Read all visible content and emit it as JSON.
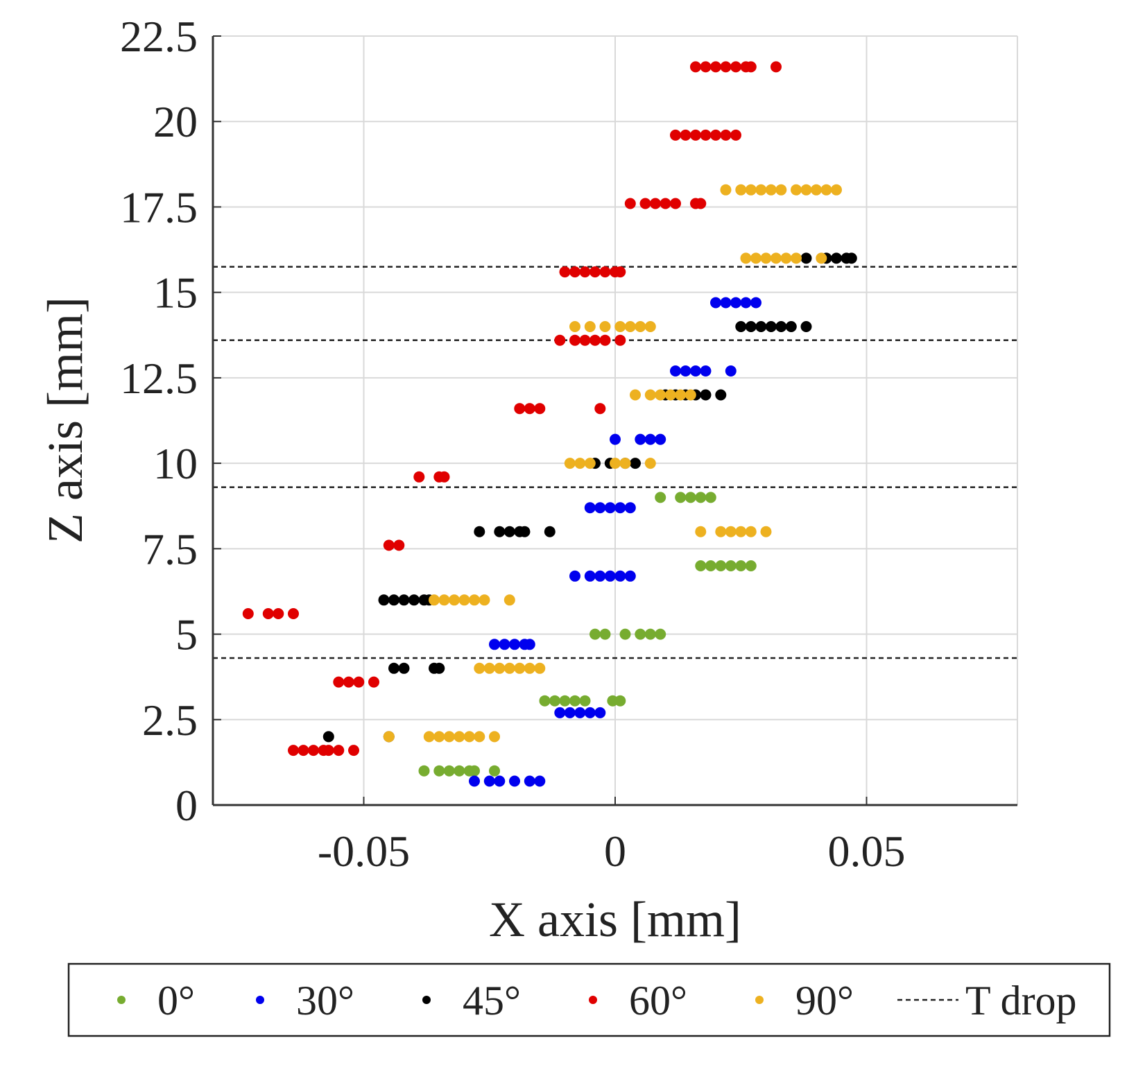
{
  "chart_data": {
    "type": "scatter",
    "title": "",
    "xlabel": "X axis [mm]",
    "ylabel": "Z axis [mm]",
    "xlim": [
      -0.08,
      0.08
    ],
    "ylim": [
      0,
      22.5
    ],
    "xticks": [
      -0.05,
      0,
      0.05
    ],
    "xtick_labels": [
      "-0.05",
      "0",
      "0.05"
    ],
    "yticks": [
      0,
      2.5,
      5,
      7.5,
      10,
      12.5,
      15,
      17.5,
      20,
      22.5
    ],
    "ytick_labels": [
      "0",
      "2.5",
      "5",
      "7.5",
      "10",
      "12.5",
      "15",
      "17.5",
      "20",
      "22.5"
    ],
    "grid": true,
    "legend_position": "bottom",
    "series": [
      {
        "name": "0°",
        "color": "#77ac30",
        "points": [
          [
            -0.038,
            1.0
          ],
          [
            -0.035,
            1.0
          ],
          [
            -0.033,
            1.0
          ],
          [
            -0.031,
            1.0
          ],
          [
            -0.029,
            1.0
          ],
          [
            -0.028,
            1.0
          ],
          [
            -0.024,
            1.0
          ],
          [
            -0.014,
            3.05
          ],
          [
            -0.012,
            3.05
          ],
          [
            -0.01,
            3.05
          ],
          [
            -0.008,
            3.05
          ],
          [
            -0.006,
            3.05
          ],
          [
            -0.0005,
            3.05
          ],
          [
            0.001,
            3.05
          ],
          [
            -0.004,
            5.0
          ],
          [
            -0.002,
            5.0
          ],
          [
            0.002,
            5.0
          ],
          [
            0.005,
            5.0
          ],
          [
            0.007,
            5.0
          ],
          [
            0.009,
            5.0
          ],
          [
            0.017,
            7.0
          ],
          [
            0.019,
            7.0
          ],
          [
            0.021,
            7.0
          ],
          [
            0.023,
            7.0
          ],
          [
            0.025,
            7.0
          ],
          [
            0.027,
            7.0
          ],
          [
            0.009,
            9.0
          ],
          [
            0.013,
            9.0
          ],
          [
            0.015,
            9.0
          ],
          [
            0.017,
            9.0
          ],
          [
            0.019,
            9.0
          ]
        ]
      },
      {
        "name": "30°",
        "color": "#0000ee",
        "points": [
          [
            -0.028,
            0.7
          ],
          [
            -0.025,
            0.7
          ],
          [
            -0.023,
            0.7
          ],
          [
            -0.02,
            0.7
          ],
          [
            -0.017,
            0.7
          ],
          [
            -0.015,
            0.7
          ],
          [
            -0.011,
            2.7
          ],
          [
            -0.009,
            2.7
          ],
          [
            -0.007,
            2.7
          ],
          [
            -0.005,
            2.7
          ],
          [
            -0.003,
            2.7
          ],
          [
            -0.024,
            4.7
          ],
          [
            -0.022,
            4.7
          ],
          [
            -0.02,
            4.7
          ],
          [
            -0.018,
            4.7
          ],
          [
            -0.017,
            4.7
          ],
          [
            -0.008,
            6.7
          ],
          [
            -0.005,
            6.7
          ],
          [
            -0.003,
            6.7
          ],
          [
            -0.001,
            6.7
          ],
          [
            0.001,
            6.7
          ],
          [
            0.003,
            6.7
          ],
          [
            -0.005,
            8.7
          ],
          [
            -0.003,
            8.7
          ],
          [
            -0.001,
            8.7
          ],
          [
            0.001,
            8.7
          ],
          [
            0.003,
            8.7
          ],
          [
            0.0,
            10.7
          ],
          [
            0.005,
            10.7
          ],
          [
            0.007,
            10.7
          ],
          [
            0.009,
            10.7
          ],
          [
            0.012,
            12.7
          ],
          [
            0.014,
            12.7
          ],
          [
            0.016,
            12.7
          ],
          [
            0.018,
            12.7
          ],
          [
            0.023,
            12.7
          ],
          [
            0.02,
            14.7
          ],
          [
            0.022,
            14.7
          ],
          [
            0.024,
            14.7
          ],
          [
            0.026,
            14.7
          ],
          [
            0.028,
            14.7
          ]
        ]
      },
      {
        "name": "45°",
        "color": "#000000",
        "points": [
          [
            -0.057,
            2.0
          ],
          [
            -0.045,
            2.0
          ],
          [
            -0.044,
            4.0
          ],
          [
            -0.042,
            4.0
          ],
          [
            -0.036,
            4.0
          ],
          [
            -0.035,
            4.0
          ],
          [
            -0.046,
            6.0
          ],
          [
            -0.044,
            6.0
          ],
          [
            -0.042,
            6.0
          ],
          [
            -0.04,
            6.0
          ],
          [
            -0.038,
            6.0
          ],
          [
            -0.037,
            6.0
          ],
          [
            -0.027,
            8.0
          ],
          [
            -0.023,
            8.0
          ],
          [
            -0.021,
            8.0
          ],
          [
            -0.019,
            8.0
          ],
          [
            -0.018,
            8.0
          ],
          [
            -0.013,
            8.0
          ],
          [
            -0.004,
            10.0
          ],
          [
            -0.001,
            10.0
          ],
          [
            0.002,
            10.0
          ],
          [
            0.004,
            10.0
          ],
          [
            0.01,
            12.0
          ],
          [
            0.012,
            12.0
          ],
          [
            0.014,
            12.0
          ],
          [
            0.016,
            12.0
          ],
          [
            0.018,
            12.0
          ],
          [
            0.021,
            12.0
          ],
          [
            0.025,
            14.0
          ],
          [
            0.027,
            14.0
          ],
          [
            0.029,
            14.0
          ],
          [
            0.031,
            14.0
          ],
          [
            0.033,
            14.0
          ],
          [
            0.035,
            14.0
          ],
          [
            0.038,
            14.0
          ],
          [
            0.038,
            16.0
          ],
          [
            0.042,
            16.0
          ],
          [
            0.044,
            16.0
          ],
          [
            0.046,
            16.0
          ],
          [
            0.047,
            16.0
          ]
        ]
      },
      {
        "name": "60°",
        "color": "#e00000",
        "points": [
          [
            -0.064,
            1.6
          ],
          [
            -0.062,
            1.6
          ],
          [
            -0.06,
            1.6
          ],
          [
            -0.058,
            1.6
          ],
          [
            -0.057,
            1.6
          ],
          [
            -0.055,
            1.6
          ],
          [
            -0.052,
            1.6
          ],
          [
            -0.055,
            3.6
          ],
          [
            -0.053,
            3.6
          ],
          [
            -0.051,
            3.6
          ],
          [
            -0.048,
            3.6
          ],
          [
            -0.073,
            5.6
          ],
          [
            -0.069,
            5.6
          ],
          [
            -0.067,
            5.6
          ],
          [
            -0.064,
            5.6
          ],
          [
            -0.045,
            7.6
          ],
          [
            -0.043,
            7.6
          ],
          [
            -0.039,
            9.6
          ],
          [
            -0.035,
            9.6
          ],
          [
            -0.034,
            9.6
          ],
          [
            -0.019,
            11.6
          ],
          [
            -0.017,
            11.6
          ],
          [
            -0.015,
            11.6
          ],
          [
            -0.003,
            11.6
          ],
          [
            -0.011,
            13.6
          ],
          [
            -0.008,
            13.6
          ],
          [
            -0.006,
            13.6
          ],
          [
            -0.004,
            13.6
          ],
          [
            -0.002,
            13.6
          ],
          [
            0.001,
            13.6
          ],
          [
            -0.01,
            15.6
          ],
          [
            -0.008,
            15.6
          ],
          [
            -0.006,
            15.6
          ],
          [
            -0.004,
            15.6
          ],
          [
            -0.002,
            15.6
          ],
          [
            0.0,
            15.6
          ],
          [
            0.001,
            15.6
          ],
          [
            0.003,
            17.6
          ],
          [
            0.006,
            17.6
          ],
          [
            0.008,
            17.6
          ],
          [
            0.01,
            17.6
          ],
          [
            0.012,
            17.6
          ],
          [
            0.016,
            17.6
          ],
          [
            0.017,
            17.6
          ],
          [
            0.012,
            19.6
          ],
          [
            0.014,
            19.6
          ],
          [
            0.016,
            19.6
          ],
          [
            0.018,
            19.6
          ],
          [
            0.02,
            19.6
          ],
          [
            0.022,
            19.6
          ],
          [
            0.024,
            19.6
          ],
          [
            0.016,
            21.6
          ],
          [
            0.018,
            21.6
          ],
          [
            0.02,
            21.6
          ],
          [
            0.022,
            21.6
          ],
          [
            0.024,
            21.6
          ],
          [
            0.026,
            21.6
          ],
          [
            0.027,
            21.6
          ],
          [
            0.032,
            21.6
          ]
        ]
      },
      {
        "name": "90°",
        "color": "#edb120",
        "points": [
          [
            -0.045,
            2.0
          ],
          [
            -0.037,
            2.0
          ],
          [
            -0.035,
            2.0
          ],
          [
            -0.033,
            2.0
          ],
          [
            -0.031,
            2.0
          ],
          [
            -0.029,
            2.0
          ],
          [
            -0.027,
            2.0
          ],
          [
            -0.024,
            2.0
          ],
          [
            -0.027,
            4.0
          ],
          [
            -0.025,
            4.0
          ],
          [
            -0.023,
            4.0
          ],
          [
            -0.021,
            4.0
          ],
          [
            -0.019,
            4.0
          ],
          [
            -0.017,
            4.0
          ],
          [
            -0.015,
            4.0
          ],
          [
            -0.036,
            6.0
          ],
          [
            -0.034,
            6.0
          ],
          [
            -0.032,
            6.0
          ],
          [
            -0.03,
            6.0
          ],
          [
            -0.028,
            6.0
          ],
          [
            -0.026,
            6.0
          ],
          [
            -0.021,
            6.0
          ],
          [
            0.017,
            8.0
          ],
          [
            0.021,
            8.0
          ],
          [
            0.023,
            8.0
          ],
          [
            0.025,
            8.0
          ],
          [
            0.027,
            8.0
          ],
          [
            0.03,
            8.0
          ],
          [
            -0.009,
            10.0
          ],
          [
            -0.007,
            10.0
          ],
          [
            -0.005,
            10.0
          ],
          [
            0.0,
            10.0
          ],
          [
            0.002,
            10.0
          ],
          [
            0.007,
            10.0
          ],
          [
            0.004,
            12.0
          ],
          [
            0.007,
            12.0
          ],
          [
            0.009,
            12.0
          ],
          [
            0.011,
            12.0
          ],
          [
            0.013,
            12.0
          ],
          [
            0.015,
            12.0
          ],
          [
            -0.008,
            14.0
          ],
          [
            -0.005,
            14.0
          ],
          [
            -0.002,
            14.0
          ],
          [
            0.001,
            14.0
          ],
          [
            0.003,
            14.0
          ],
          [
            0.005,
            14.0
          ],
          [
            0.007,
            14.0
          ],
          [
            0.026,
            16.0
          ],
          [
            0.028,
            16.0
          ],
          [
            0.03,
            16.0
          ],
          [
            0.032,
            16.0
          ],
          [
            0.034,
            16.0
          ],
          [
            0.036,
            16.0
          ],
          [
            0.041,
            16.0
          ],
          [
            0.022,
            18.0
          ],
          [
            0.025,
            18.0
          ],
          [
            0.027,
            18.0
          ],
          [
            0.029,
            18.0
          ],
          [
            0.031,
            18.0
          ],
          [
            0.033,
            18.0
          ],
          [
            0.036,
            18.0
          ],
          [
            0.038,
            18.0
          ],
          [
            0.04,
            18.0
          ],
          [
            0.042,
            18.0
          ],
          [
            0.044,
            18.0
          ]
        ]
      }
    ],
    "reference_lines": {
      "name": "T drop",
      "color": "#222222",
      "style": "dashed",
      "y_values": [
        4.3,
        9.3,
        13.6,
        15.75
      ]
    }
  }
}
